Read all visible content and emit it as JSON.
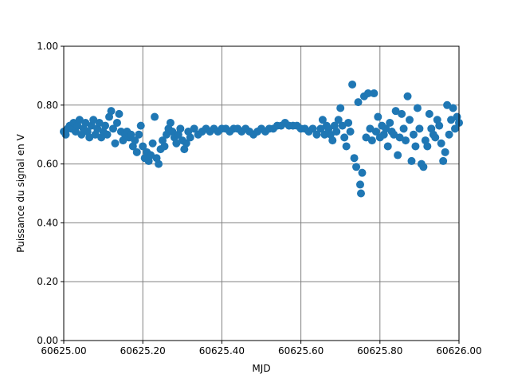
{
  "chart_data": {
    "type": "scatter",
    "xlabel": "MJD",
    "ylabel": "Puissance du signal en V",
    "color": "#1f77b4",
    "grid": true,
    "xlim": [
      60625.0,
      60626.0
    ],
    "xticks": [
      {
        "value": 60625.0,
        "label": "60625.00"
      },
      {
        "value": 60625.2,
        "label": "60625.20"
      },
      {
        "value": 60625.4,
        "label": "60625.40"
      },
      {
        "value": 60625.6,
        "label": "60625.60"
      },
      {
        "value": 60625.8,
        "label": "60625.80"
      },
      {
        "value": 60626.0,
        "label": "60626.00"
      }
    ],
    "ylim": [
      0,
      1
    ],
    "yticks": [
      {
        "value": 0,
        "label": "0.00"
      },
      {
        "value": 0.2,
        "label": "0.20"
      },
      {
        "value": 0.4,
        "label": "0.40"
      },
      {
        "value": 0.6,
        "label": "0.60"
      },
      {
        "value": 0.8,
        "label": "0.80"
      },
      {
        "value": 1,
        "label": "1.00"
      }
    ],
    "x": [
      60625.0,
      60625.005,
      60625.01,
      60625.015,
      60625.02,
      60625.025,
      60625.03,
      60625.035,
      60625.04,
      60625.045,
      60625.05,
      60625.055,
      60625.06,
      60625.065,
      60625.07,
      60625.075,
      60625.08,
      60625.085,
      60625.09,
      60625.095,
      60625.1,
      60625.105,
      60625.11,
      60625.115,
      60625.12,
      60625.125,
      60625.13,
      60625.135,
      60625.14,
      60625.145,
      60625.15,
      60625.155,
      60625.16,
      60625.165,
      60625.17,
      60625.175,
      60625.18,
      60625.185,
      60625.19,
      60625.195,
      60625.2,
      60625.205,
      60625.21,
      60625.215,
      60625.22,
      60625.225,
      60625.23,
      60625.235,
      60625.24,
      60625.245,
      60625.25,
      60625.255,
      60625.26,
      60625.265,
      60625.27,
      60625.275,
      60625.28,
      60625.285,
      60625.29,
      60625.295,
      60625.3,
      60625.305,
      60625.31,
      60625.315,
      60625.32,
      60625.33,
      60625.34,
      60625.35,
      60625.36,
      60625.37,
      60625.38,
      60625.39,
      60625.4,
      60625.41,
      60625.42,
      60625.43,
      60625.44,
      60625.45,
      60625.46,
      60625.47,
      60625.48,
      60625.49,
      60625.5,
      60625.51,
      60625.52,
      60625.53,
      60625.54,
      60625.55,
      60625.56,
      60625.57,
      60625.58,
      60625.59,
      60625.6,
      60625.61,
      60625.62,
      60625.63,
      60625.64,
      60625.65,
      60625.655,
      60625.66,
      60625.665,
      60625.67,
      60625.675,
      60625.68,
      60625.685,
      60625.69,
      60625.695,
      60625.7,
      60625.705,
      60625.71,
      60625.715,
      60625.72,
      60625.725,
      60625.73,
      60625.735,
      60625.74,
      60625.745,
      60625.75,
      60625.752,
      60625.755,
      60625.76,
      60625.765,
      60625.77,
      60625.775,
      60625.78,
      60625.785,
      60625.79,
      60625.795,
      60625.8,
      60625.805,
      60625.81,
      60625.815,
      60625.82,
      60625.825,
      60625.83,
      60625.835,
      60625.84,
      60625.845,
      60625.85,
      60625.855,
      60625.86,
      60625.865,
      60625.87,
      60625.875,
      60625.88,
      60625.885,
      60625.89,
      60625.895,
      60625.9,
      60625.905,
      60625.91,
      60625.915,
      60625.92,
      60625.925,
      60625.93,
      60625.935,
      60625.94,
      60625.945,
      60625.95,
      60625.955,
      60625.96,
      60625.965,
      60625.97,
      60625.975,
      60625.98,
      60625.985,
      60625.99,
      60625.995,
      60626.0
    ],
    "values": [
      0.71,
      0.7,
      0.72,
      0.73,
      0.72,
      0.74,
      0.71,
      0.73,
      0.75,
      0.7,
      0.72,
      0.74,
      0.71,
      0.69,
      0.73,
      0.75,
      0.7,
      0.72,
      0.74,
      0.69,
      0.71,
      0.73,
      0.7,
      0.76,
      0.78,
      0.72,
      0.67,
      0.74,
      0.77,
      0.71,
      0.68,
      0.7,
      0.71,
      0.69,
      0.7,
      0.66,
      0.68,
      0.64,
      0.7,
      0.73,
      0.66,
      0.62,
      0.64,
      0.61,
      0.63,
      0.67,
      0.76,
      0.62,
      0.6,
      0.65,
      0.68,
      0.66,
      0.7,
      0.72,
      0.74,
      0.71,
      0.69,
      0.67,
      0.7,
      0.72,
      0.68,
      0.65,
      0.67,
      0.71,
      0.69,
      0.72,
      0.7,
      0.71,
      0.72,
      0.71,
      0.72,
      0.71,
      0.72,
      0.72,
      0.71,
      0.72,
      0.72,
      0.71,
      0.72,
      0.71,
      0.7,
      0.71,
      0.72,
      0.71,
      0.72,
      0.72,
      0.73,
      0.73,
      0.74,
      0.73,
      0.73,
      0.73,
      0.72,
      0.72,
      0.71,
      0.72,
      0.7,
      0.72,
      0.75,
      0.7,
      0.73,
      0.72,
      0.7,
      0.68,
      0.73,
      0.71,
      0.75,
      0.79,
      0.73,
      0.69,
      0.66,
      0.74,
      0.71,
      0.87,
      0.62,
      0.59,
      0.81,
      0.53,
      0.5,
      0.57,
      0.83,
      0.69,
      0.84,
      0.72,
      0.68,
      0.84,
      0.71,
      0.76,
      0.69,
      0.73,
      0.7,
      0.72,
      0.66,
      0.74,
      0.71,
      0.7,
      0.78,
      0.63,
      0.69,
      0.77,
      0.72,
      0.68,
      0.83,
      0.75,
      0.61,
      0.7,
      0.66,
      0.79,
      0.72,
      0.6,
      0.59,
      0.68,
      0.66,
      0.77,
      0.72,
      0.7,
      0.69,
      0.75,
      0.73,
      0.67,
      0.61,
      0.64,
      0.8,
      0.7,
      0.75,
      0.79,
      0.72,
      0.76,
      0.74
    ]
  }
}
